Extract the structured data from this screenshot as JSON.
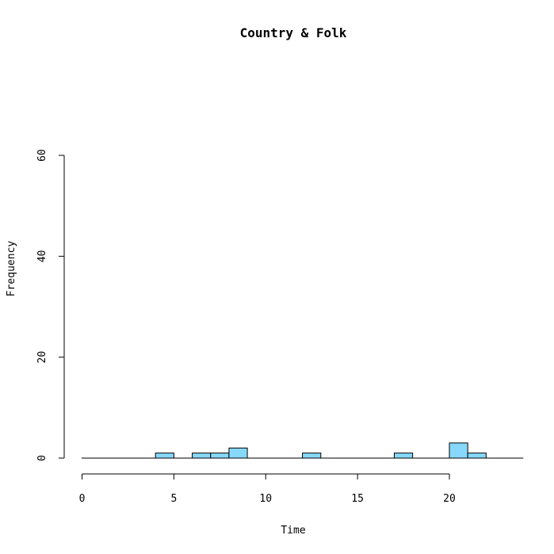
{
  "chart_data": {
    "type": "histogram",
    "title": "Country & Folk",
    "xlabel": "Time",
    "ylabel": "Frequency",
    "xlim": [
      0,
      24
    ],
    "ylim": [
      0,
      60
    ],
    "x_ticks": [
      0,
      5,
      10,
      15,
      20
    ],
    "y_ticks": [
      0,
      20,
      40,
      60
    ],
    "bin_width": 1,
    "bins": [
      {
        "start": 0,
        "end": 1,
        "count": 0
      },
      {
        "start": 1,
        "end": 2,
        "count": 0
      },
      {
        "start": 2,
        "end": 3,
        "count": 0
      },
      {
        "start": 3,
        "end": 4,
        "count": 0
      },
      {
        "start": 4,
        "end": 5,
        "count": 1
      },
      {
        "start": 5,
        "end": 6,
        "count": 0
      },
      {
        "start": 6,
        "end": 7,
        "count": 1
      },
      {
        "start": 7,
        "end": 8,
        "count": 1
      },
      {
        "start": 8,
        "end": 9,
        "count": 2
      },
      {
        "start": 9,
        "end": 10,
        "count": 0
      },
      {
        "start": 10,
        "end": 11,
        "count": 0
      },
      {
        "start": 11,
        "end": 12,
        "count": 0
      },
      {
        "start": 12,
        "end": 13,
        "count": 1
      },
      {
        "start": 13,
        "end": 14,
        "count": 0
      },
      {
        "start": 14,
        "end": 15,
        "count": 0
      },
      {
        "start": 15,
        "end": 16,
        "count": 0
      },
      {
        "start": 16,
        "end": 17,
        "count": 0
      },
      {
        "start": 17,
        "end": 18,
        "count": 1
      },
      {
        "start": 18,
        "end": 19,
        "count": 0
      },
      {
        "start": 19,
        "end": 20,
        "count": 0
      },
      {
        "start": 20,
        "end": 21,
        "count": 3
      },
      {
        "start": 21,
        "end": 22,
        "count": 1
      },
      {
        "start": 22,
        "end": 23,
        "count": 0
      },
      {
        "start": 23,
        "end": 24,
        "count": 0
      }
    ],
    "bar_color": "#87d8fb",
    "grid": false,
    "legend": "none"
  }
}
